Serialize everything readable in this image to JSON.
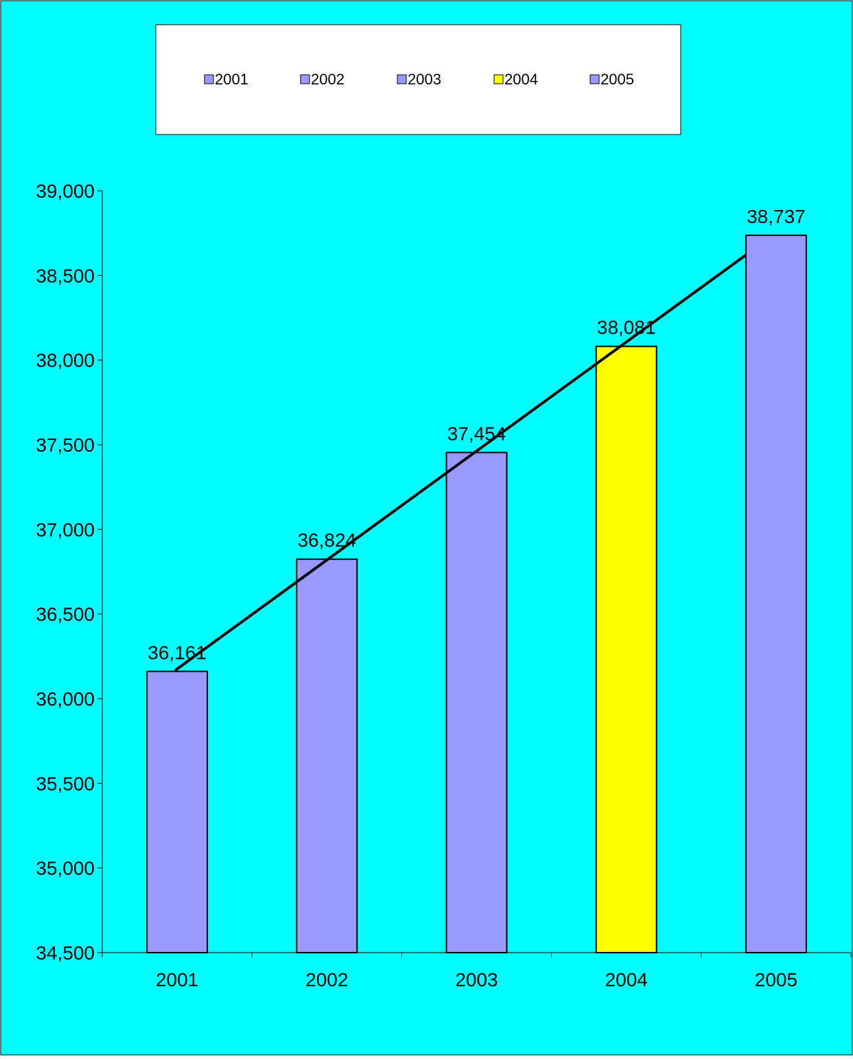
{
  "chart_data": {
    "type": "bar",
    "categories": [
      "2001",
      "2002",
      "2003",
      "2004",
      "2005"
    ],
    "values": [
      36161,
      36824,
      37454,
      38081,
      38737
    ],
    "value_labels": [
      "36,161",
      "36,824",
      "37,454",
      "38,081",
      "38,737"
    ],
    "ylim": [
      34500,
      39000
    ],
    "y_ticks": [
      34500,
      35000,
      35500,
      36000,
      36500,
      37000,
      37500,
      38000,
      38500,
      39000
    ],
    "y_tick_labels": [
      "34,500",
      "35,000",
      "35,500",
      "36,000",
      "36,500",
      "37,000",
      "37,500",
      "38,000",
      "38,500",
      "39,000"
    ],
    "bar_colors": [
      "#9999ff",
      "#9999ff",
      "#9999ff",
      "#ffff00",
      "#9999ff"
    ],
    "background_color": "#00ffff",
    "legend": {
      "placement": "top",
      "entries": [
        {
          "label": "2001",
          "color": "#9999ff"
        },
        {
          "label": "2002",
          "color": "#9999ff"
        },
        {
          "label": "2003",
          "color": "#9999ff"
        },
        {
          "label": "2004",
          "color": "#ffff00"
        },
        {
          "label": "2005",
          "color": "#9999ff"
        }
      ]
    },
    "trendline": {
      "type": "linear",
      "color": "#000000"
    },
    "grid": false,
    "title": "",
    "xlabel": "",
    "ylabel": ""
  }
}
